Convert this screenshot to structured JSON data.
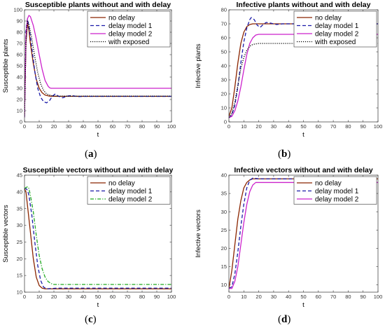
{
  "chart_data": [
    {
      "type": "line",
      "panel_label": "a",
      "title": "Susceptible plants without and with delay",
      "xlabel": "t",
      "ylabel": "Susceptible plants",
      "xlim": [
        0,
        100
      ],
      "ylim": [
        0,
        100
      ],
      "xticks": [
        0,
        10,
        20,
        30,
        40,
        50,
        60,
        70,
        80,
        90,
        100
      ],
      "yticks": [
        0,
        10,
        20,
        30,
        40,
        50,
        60,
        70,
        80,
        90,
        100
      ],
      "legend_position": "top-right",
      "series": [
        {
          "name": "no delay",
          "color": "#8B2500",
          "dash": "solid",
          "points": [
            [
              0,
              6
            ],
            [
              1,
              70
            ],
            [
              2,
              88
            ],
            [
              3,
              82
            ],
            [
              4,
              70
            ],
            [
              6,
              52
            ],
            [
              8,
              38
            ],
            [
              10,
              30
            ],
            [
              12,
              26
            ],
            [
              14,
              24
            ],
            [
              17,
              23
            ],
            [
              20,
              22.8
            ],
            [
              30,
              22.8
            ],
            [
              100,
              22.8
            ]
          ]
        },
        {
          "name": "delay model 1",
          "color": "#1a1aa8",
          "dash": "dashed",
          "points": [
            [
              0,
              4
            ],
            [
              1,
              82
            ],
            [
              2,
              92
            ],
            [
              3,
              85
            ],
            [
              5,
              66
            ],
            [
              7,
              45
            ],
            [
              9,
              30
            ],
            [
              11,
              22
            ],
            [
              13,
              18
            ],
            [
              15,
              17
            ],
            [
              17,
              19
            ],
            [
              19,
              23
            ],
            [
              21,
              25
            ],
            [
              23,
              23
            ],
            [
              26,
              21.5
            ],
            [
              29,
              23
            ],
            [
              32,
              23.5
            ],
            [
              36,
              22.6
            ],
            [
              40,
              22.8
            ],
            [
              100,
              22.8
            ]
          ]
        },
        {
          "name": "delay model 2",
          "color": "#cc22cc",
          "dash": "solid",
          "points": [
            [
              0,
              4
            ],
            [
              1,
              76
            ],
            [
              2,
              92
            ],
            [
              3,
              95
            ],
            [
              4,
              94
            ],
            [
              6,
              86
            ],
            [
              8,
              74
            ],
            [
              10,
              60
            ],
            [
              12,
              47
            ],
            [
              14,
              37
            ],
            [
              16,
              32
            ],
            [
              17,
              30.5
            ],
            [
              18,
              30
            ],
            [
              100,
              30
            ]
          ]
        },
        {
          "name": "with exposed",
          "color": "#000000",
          "dash": "dotted",
          "points": [
            [
              0,
              5
            ],
            [
              1,
              72
            ],
            [
              2,
              90
            ],
            [
              3,
              87
            ],
            [
              5,
              74
            ],
            [
              7,
              58
            ],
            [
              9,
              44
            ],
            [
              11,
              34
            ],
            [
              13,
              28
            ],
            [
              15,
              25
            ],
            [
              18,
              23.5
            ],
            [
              22,
              23
            ],
            [
              100,
              23
            ]
          ]
        }
      ]
    },
    {
      "type": "line",
      "panel_label": "b",
      "title": "Infective plants without and with delay",
      "xlabel": "t",
      "ylabel": "Infective plants",
      "xlim": [
        0,
        100
      ],
      "ylim": [
        0,
        80
      ],
      "xticks": [
        0,
        10,
        20,
        30,
        40,
        50,
        60,
        70,
        80,
        90,
        100
      ],
      "yticks": [
        0,
        10,
        20,
        30,
        40,
        50,
        60,
        70,
        80
      ],
      "legend_position": "top-right",
      "series": [
        {
          "name": "no delay",
          "color": "#8B2500",
          "dash": "solid",
          "points": [
            [
              0,
              4
            ],
            [
              2,
              10
            ],
            [
              4,
              25
            ],
            [
              6,
              42
            ],
            [
              8,
              56
            ],
            [
              10,
              64
            ],
            [
              12,
              68
            ],
            [
              14,
              69.5
            ],
            [
              16,
              70
            ],
            [
              100,
              70
            ]
          ]
        },
        {
          "name": "delay model 1",
          "color": "#1a1aa8",
          "dash": "dashed",
          "points": [
            [
              0,
              3
            ],
            [
              2,
              5
            ],
            [
              4,
              12
            ],
            [
              6,
              25
            ],
            [
              8,
              42
            ],
            [
              10,
              57
            ],
            [
              12,
              67
            ],
            [
              14,
              73
            ],
            [
              15,
              74.5
            ],
            [
              17,
              73
            ],
            [
              19,
              69
            ],
            [
              21,
              67.5
            ],
            [
              23,
              69.5
            ],
            [
              25,
              71
            ],
            [
              28,
              70.5
            ],
            [
              32,
              69.5
            ],
            [
              36,
              70
            ],
            [
              100,
              70
            ]
          ]
        },
        {
          "name": "delay model 2",
          "color": "#cc22cc",
          "dash": "solid",
          "points": [
            [
              0,
              3
            ],
            [
              2,
              4
            ],
            [
              4,
              8
            ],
            [
              6,
              15
            ],
            [
              8,
              25
            ],
            [
              10,
              37
            ],
            [
              12,
              48
            ],
            [
              14,
              56
            ],
            [
              16,
              60
            ],
            [
              18,
              62
            ],
            [
              20,
              62.5
            ],
            [
              100,
              62.5
            ]
          ]
        },
        {
          "name": "with exposed",
          "color": "#000000",
          "dash": "dotted",
          "points": [
            [
              0,
              3
            ],
            [
              2,
              6
            ],
            [
              4,
              14
            ],
            [
              6,
              26
            ],
            [
              8,
              38
            ],
            [
              10,
              46
            ],
            [
              12,
              51
            ],
            [
              14,
              54
            ],
            [
              16,
              55.3
            ],
            [
              20,
              56
            ],
            [
              100,
              56
            ]
          ]
        }
      ]
    },
    {
      "type": "line",
      "panel_label": "c",
      "title": "Susceptible vectors without and with delay",
      "xlabel": "t",
      "ylabel": "Susceptible vectors",
      "xlim": [
        0,
        100
      ],
      "ylim": [
        10,
        45
      ],
      "xticks": [
        0,
        10,
        20,
        30,
        40,
        50,
        60,
        70,
        80,
        90,
        100
      ],
      "yticks": [
        10,
        15,
        20,
        25,
        30,
        35,
        40,
        45
      ],
      "legend_position": "top-right",
      "series": [
        {
          "name": "no delay",
          "color": "#8B2500",
          "dash": "solid",
          "points": [
            [
              0,
              41
            ],
            [
              1,
              40
            ],
            [
              2,
              36
            ],
            [
              4,
              28
            ],
            [
              6,
              20
            ],
            [
              8,
              14.5
            ],
            [
              10,
              12
            ],
            [
              12,
              11.2
            ],
            [
              14,
              11
            ],
            [
              100,
              11
            ]
          ]
        },
        {
          "name": "delay model 1",
          "color": "#1a1aa8",
          "dash": "dashed",
          "points": [
            [
              0,
              41
            ],
            [
              1,
              41
            ],
            [
              2,
              40.5
            ],
            [
              3,
              39
            ],
            [
              5,
              33
            ],
            [
              7,
              25
            ],
            [
              9,
              18
            ],
            [
              11,
              13.5
            ],
            [
              13,
              11.5
            ],
            [
              15,
              11
            ],
            [
              18,
              11.1
            ],
            [
              22,
              11.2
            ],
            [
              100,
              11.2
            ]
          ]
        },
        {
          "name": "delay model 2",
          "color": "#22aa22",
          "dash": "dashdot",
          "points": [
            [
              0,
              41
            ],
            [
              1,
              41.3
            ],
            [
              2,
              41.5
            ],
            [
              3,
              41
            ],
            [
              4,
              39
            ],
            [
              6,
              34
            ],
            [
              8,
              27
            ],
            [
              10,
              21
            ],
            [
              12,
              17
            ],
            [
              14,
              14.5
            ],
            [
              16,
              13.2
            ],
            [
              18,
              12.6
            ],
            [
              20,
              12.3
            ],
            [
              100,
              12.3
            ]
          ]
        }
      ]
    },
    {
      "type": "line",
      "panel_label": "d",
      "title": "Infective vectors without and with delay",
      "xlabel": "t",
      "ylabel": "Infective vectors",
      "xlim": [
        0,
        100
      ],
      "ylim": [
        8,
        40
      ],
      "xticks": [
        0,
        10,
        20,
        30,
        40,
        50,
        60,
        70,
        80,
        90,
        100
      ],
      "yticks": [
        10,
        15,
        20,
        25,
        30,
        35,
        40
      ],
      "legend_position": "top-right",
      "series": [
        {
          "name": "no delay",
          "color": "#8B2500",
          "dash": "solid",
          "points": [
            [
              0,
              9
            ],
            [
              2,
              14
            ],
            [
              4,
              21
            ],
            [
              6,
              28
            ],
            [
              8,
              33
            ],
            [
              10,
              36.5
            ],
            [
              12,
              38
            ],
            [
              14,
              38.7
            ],
            [
              16,
              39
            ],
            [
              100,
              39
            ]
          ]
        },
        {
          "name": "delay model 1",
          "color": "#1a1aa8",
          "dash": "dashed",
          "points": [
            [
              0,
              9
            ],
            [
              2,
              9.5
            ],
            [
              4,
              13
            ],
            [
              6,
              19
            ],
            [
              8,
              26
            ],
            [
              10,
              32
            ],
            [
              12,
              36.5
            ],
            [
              14,
              38.6
            ],
            [
              16,
              39.2
            ],
            [
              20,
              39
            ],
            [
              100,
              38.9
            ]
          ]
        },
        {
          "name": "delay model 2",
          "color": "#cc22cc",
          "dash": "solid",
          "points": [
            [
              0,
              9
            ],
            [
              2,
              9
            ],
            [
              4,
              11
            ],
            [
              6,
              15
            ],
            [
              8,
              21
            ],
            [
              10,
              27
            ],
            [
              12,
              32
            ],
            [
              14,
              35.5
            ],
            [
              16,
              37.3
            ],
            [
              18,
              38
            ],
            [
              20,
              38
            ],
            [
              100,
              38
            ]
          ]
        }
      ]
    }
  ]
}
